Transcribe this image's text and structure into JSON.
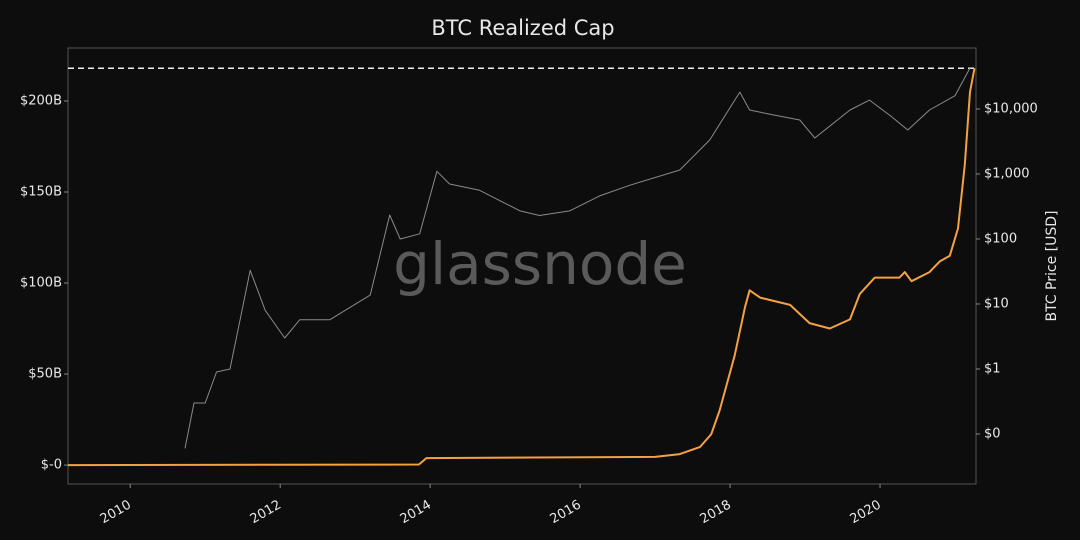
{
  "chart_data": {
    "type": "line",
    "title": "BTC Realized Cap",
    "y2_label": "BTC Price [USD]",
    "watermark": "glassnode",
    "xlim": [
      2009.17,
      2021.28
    ],
    "xticks": [
      2010,
      2012,
      2014,
      2016,
      2018,
      2020
    ],
    "ylim": [
      -10.4,
      229.1
    ],
    "yticks": [
      {
        "value": 0,
        "label": "$-0"
      },
      {
        "value": 50,
        "label": "$50B"
      },
      {
        "value": 100,
        "label": "$100B"
      },
      {
        "value": 150,
        "label": "$150B"
      },
      {
        "value": 200,
        "label": "$200B"
      }
    ],
    "y2lim": [
      0.017,
      86700
    ],
    "y2_log": true,
    "y2ticks": [
      {
        "value": 0.1,
        "label": "$0"
      },
      {
        "value": 1,
        "label": "$1"
      },
      {
        "value": 10,
        "label": "$10"
      },
      {
        "value": 100,
        "label": "$100"
      },
      {
        "value": 1000,
        "label": "$1,000"
      },
      {
        "value": 10000,
        "label": "$10,000"
      }
    ],
    "reference_lines": [
      {
        "value": 218,
        "style": "dashed"
      }
    ],
    "series": [
      {
        "color": "#8a8a8a",
        "axis": "y2",
        "x": [
          2010.73,
          2010.85,
          2011.0,
          2011.15,
          2011.33,
          2011.6,
          2011.8,
          2012.06,
          2012.26,
          2012.66,
          2013.2,
          2013.46,
          2013.6,
          2013.86,
          2014.09,
          2014.26,
          2014.66,
          2015.2,
          2015.46,
          2015.86,
          2016.26,
          2016.66,
          2017.33,
          2017.73,
          2018.13,
          2018.26,
          2018.6,
          2018.93,
          2019.13,
          2019.6,
          2019.86,
          2020.13,
          2020.37,
          2020.66,
          2021.0,
          2021.2
        ],
        "values": [
          0.06,
          0.3,
          0.3,
          0.9,
          1,
          33,
          8,
          3,
          5.7,
          5.7,
          13.7,
          234,
          100,
          120,
          1100,
          700,
          560,
          270,
          230,
          270,
          460,
          670,
          1150,
          3340,
          18200,
          9650,
          8000,
          6760,
          3570,
          9650,
          13700,
          8000,
          4750,
          9650,
          16000,
          42700
        ]
      },
      {
        "color": "#f5a142",
        "axis": "y",
        "x": [
          2009.17,
          2013.85,
          2013.95,
          2017.0,
          2017.33,
          2017.6,
          2017.75,
          2017.86,
          2018.06,
          2018.2,
          2018.26,
          2018.4,
          2018.8,
          2019.06,
          2019.33,
          2019.6,
          2019.73,
          2019.93,
          2020.26,
          2020.33,
          2020.42,
          2020.66,
          2020.8,
          2020.93,
          2021.04,
          2021.13,
          2021.2,
          2021.26
        ],
        "values": [
          0,
          0.3,
          3.8,
          4.5,
          6,
          10,
          17,
          30,
          60,
          87,
          96,
          92,
          88,
          78,
          75,
          80,
          94,
          103,
          103,
          106,
          101,
          106,
          112,
          115,
          130,
          165,
          205,
          218
        ]
      }
    ]
  }
}
